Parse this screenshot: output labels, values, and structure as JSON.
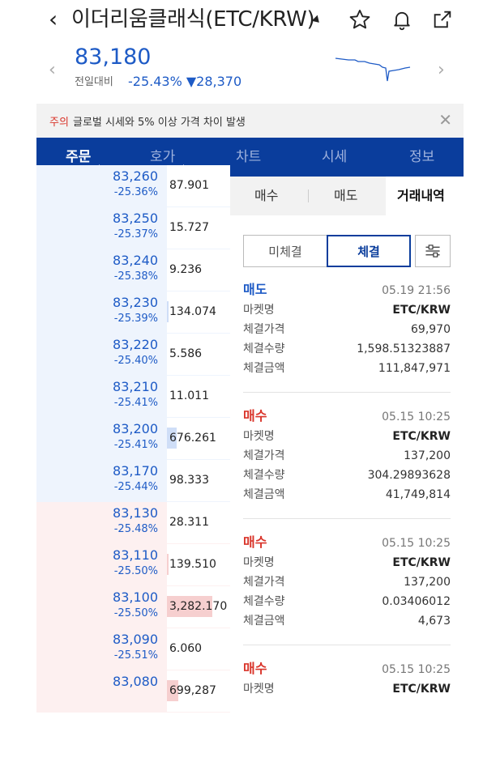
{
  "header": {
    "title": "이더리움클래식(ETC/KRW)",
    "icons": [
      "back-icon",
      "dropdown-caret-icon",
      "star-icon",
      "bell-icon",
      "share-icon"
    ]
  },
  "ticker": {
    "price": "83,180",
    "prev_label": "전일대비",
    "change_rate": "-25.43%",
    "change_amount": "▼28,370",
    "sparkline_trend": "down"
  },
  "notice": {
    "tag": "주의",
    "text": "글로벌 시세와 5% 이상 가격 차이 발생"
  },
  "tabs": [
    {
      "label": "주문",
      "active": true
    },
    {
      "label": "호가",
      "active": false
    },
    {
      "label": "차트",
      "active": false
    },
    {
      "label": "시세",
      "active": false
    },
    {
      "label": "정보",
      "active": false
    }
  ],
  "orderbook": {
    "asks": [
      {
        "price": "83,260",
        "rate": "-25.36%",
        "qty": "87.901",
        "level": 0.0
      },
      {
        "price": "83,250",
        "rate": "-25.37%",
        "qty": "15.727",
        "level": 0.0
      },
      {
        "price": "83,240",
        "rate": "-25.38%",
        "qty": "9.236",
        "level": 0.0
      },
      {
        "price": "83,230",
        "rate": "-25.39%",
        "qty": "134.074",
        "level": 0.02
      },
      {
        "price": "83,220",
        "rate": "-25.40%",
        "qty": "5.586",
        "level": 0.0
      },
      {
        "price": "83,210",
        "rate": "-25.41%",
        "qty": "11.011",
        "level": 0.0
      },
      {
        "price": "83,200",
        "rate": "-25.41%",
        "qty": "676.261",
        "level": 0.15
      },
      {
        "price": "83,170",
        "rate": "-25.44%",
        "qty": "98.333",
        "level": 0.0
      }
    ],
    "bids": [
      {
        "price": "83,130",
        "rate": "-25.48%",
        "qty": "28.311",
        "level": 0.0
      },
      {
        "price": "83,110",
        "rate": "-25.50%",
        "qty": "139.510",
        "level": 0.03
      },
      {
        "price": "83,100",
        "rate": "-25.50%",
        "qty": "3,282.170",
        "level": 0.72
      },
      {
        "price": "83,090",
        "rate": "-25.51%",
        "qty": "6.060",
        "level": 0.0
      },
      {
        "price": "83,080",
        "rate": "",
        "qty": "699,287",
        "level": 0.18
      }
    ]
  },
  "panel": {
    "sub_tabs": [
      "매수",
      "매도",
      "거래내역"
    ],
    "active_sub_tab": "거래내역",
    "filters": [
      "미체결",
      "체결"
    ],
    "active_filter": "체결",
    "filter_settings_icon": "sliders-icon",
    "trades": [
      {
        "side": "매도",
        "side_type": "sell",
        "time": "05.19 21:56",
        "rows": [
          {
            "label": "마켓명",
            "value": "ETC/KRW"
          },
          {
            "label": "체결가격",
            "value": "69,970"
          },
          {
            "label": "체결수량",
            "value": "1,598.51323887"
          },
          {
            "label": "체결금액",
            "value": "111,847,971"
          }
        ]
      },
      {
        "side": "매수",
        "side_type": "buy",
        "time": "05.15 10:25",
        "rows": [
          {
            "label": "마켓명",
            "value": "ETC/KRW"
          },
          {
            "label": "체결가격",
            "value": "137,200"
          },
          {
            "label": "체결수량",
            "value": "304.29893628"
          },
          {
            "label": "체결금액",
            "value": "41,749,814"
          }
        ]
      },
      {
        "side": "매수",
        "side_type": "buy",
        "time": "05.15 10:25",
        "rows": [
          {
            "label": "마켓명",
            "value": "ETC/KRW"
          },
          {
            "label": "체결가격",
            "value": "137,200"
          },
          {
            "label": "체결수량",
            "value": "0.03406012"
          },
          {
            "label": "체결금액",
            "value": "4,673"
          }
        ]
      },
      {
        "side": "매수",
        "side_type": "buy",
        "time": "05.15 10:25",
        "rows": [
          {
            "label": "마켓명",
            "value": "ETC/KRW"
          }
        ]
      }
    ]
  },
  "colors": {
    "accent_blue": "#1e5bc6",
    "tab_bar": "#0a3d9c",
    "down_red": "#d9352b"
  }
}
